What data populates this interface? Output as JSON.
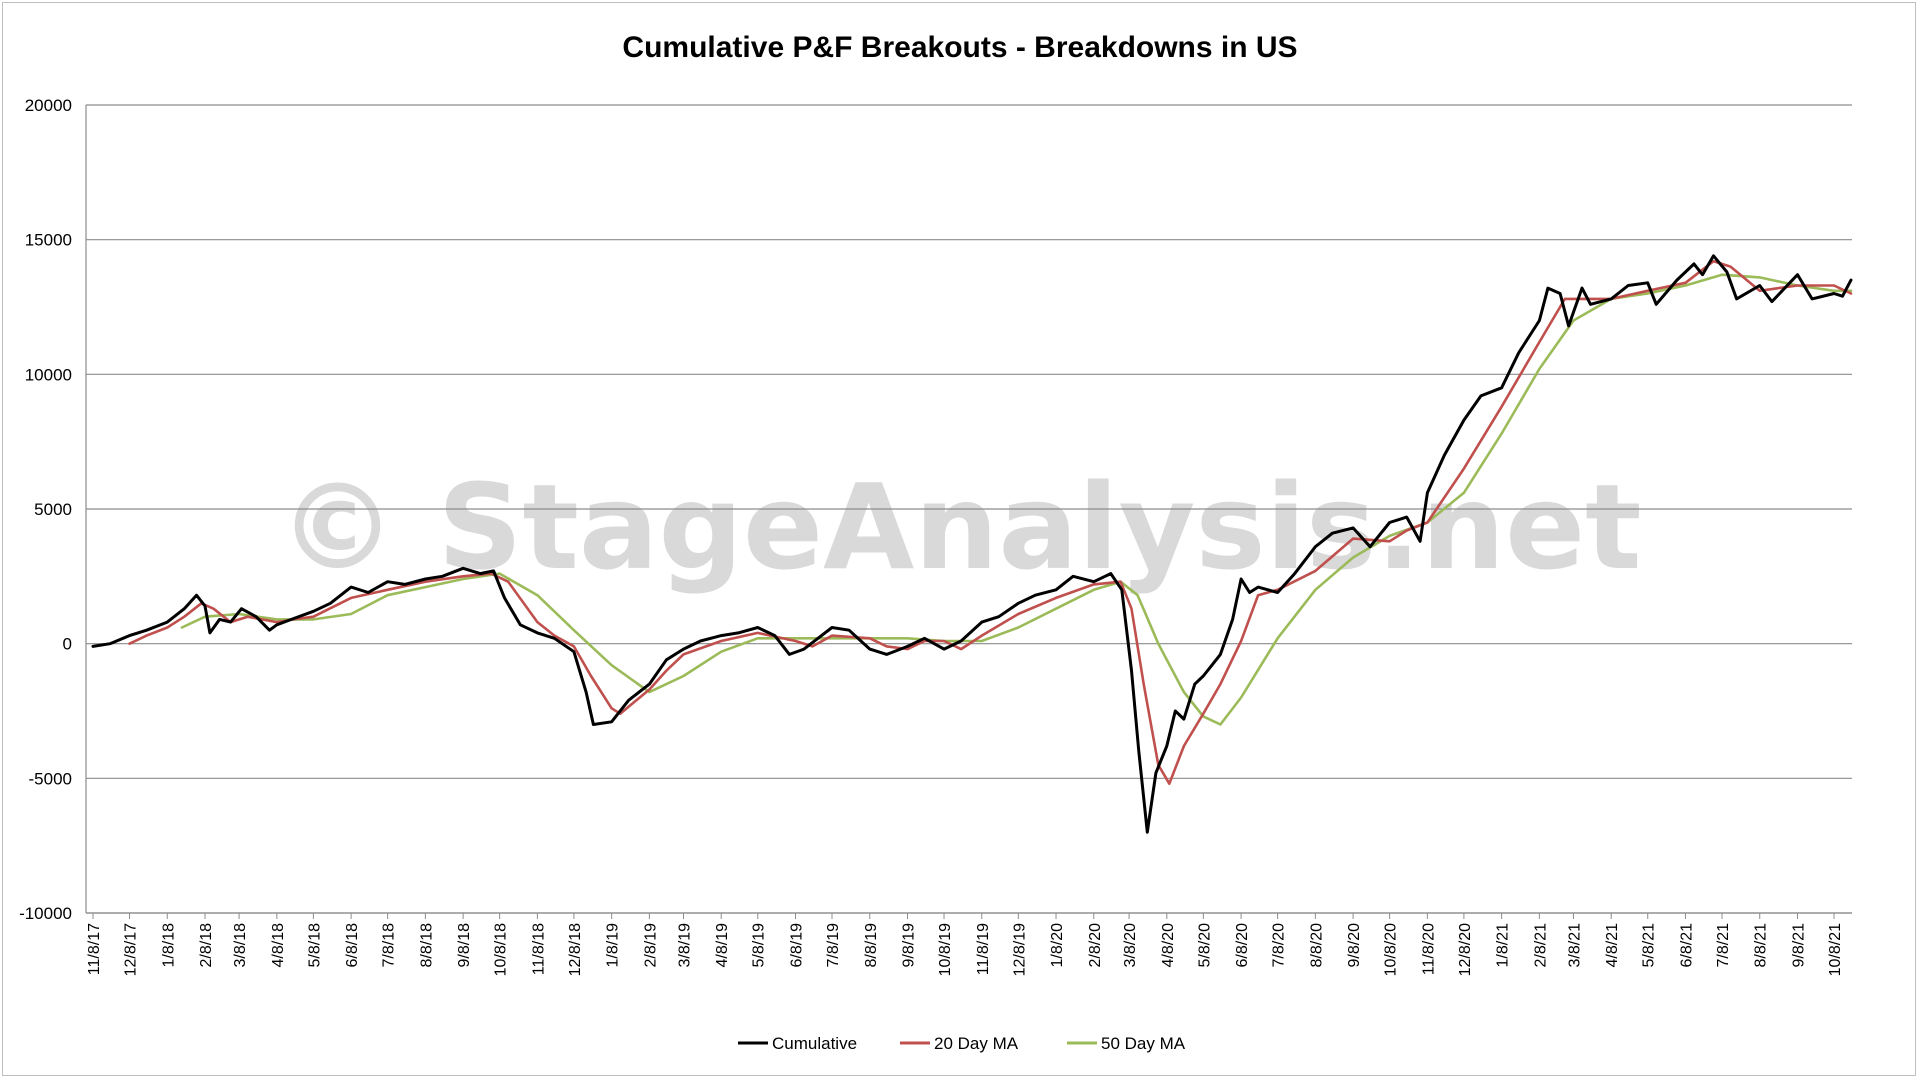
{
  "watermark": "© StageAnalysis.net",
  "chart_data": {
    "type": "line",
    "title": "Cumulative P&F Breakouts - Breakdowns in US",
    "xlabel": "",
    "ylabel": "",
    "ylim": [
      -10000,
      20000
    ],
    "yticks": [
      -10000,
      -5000,
      0,
      5000,
      10000,
      15000,
      20000
    ],
    "ytick_labels": [
      "-10000",
      "-5000",
      "0",
      "5000",
      "10000",
      "15000",
      "20000"
    ],
    "x_tick_labels": [
      "11/8/17",
      "12/8/17",
      "1/8/18",
      "2/8/18",
      "3/8/18",
      "4/8/18",
      "5/8/18",
      "6/8/18",
      "7/8/18",
      "8/8/18",
      "9/8/18",
      "10/8/18",
      "11/8/18",
      "12/8/18",
      "1/8/19",
      "2/8/19",
      "3/8/19",
      "4/8/19",
      "5/8/19",
      "6/8/19",
      "7/8/19",
      "8/8/19",
      "9/8/19",
      "10/8/19",
      "11/8/19",
      "12/8/19",
      "1/8/20",
      "2/8/20",
      "3/8/20",
      "4/8/20",
      "5/8/20",
      "6/8/20",
      "7/8/20",
      "8/8/20",
      "9/8/20",
      "10/8/20",
      "11/8/20",
      "12/8/20",
      "1/8/21",
      "2/8/21",
      "3/8/21",
      "4/8/21",
      "5/8/21",
      "6/8/21",
      "7/8/21",
      "8/8/21",
      "9/8/21",
      "10/8/21"
    ],
    "grid": true,
    "legend_position": "bottom",
    "series": [
      {
        "name": "Cumulative",
        "color": "#000000",
        "points": [
          [
            "11/8/17",
            -100
          ],
          [
            "11/22/17",
            0
          ],
          [
            "12/8/17",
            300
          ],
          [
            "12/22/17",
            500
          ],
          [
            "1/8/18",
            800
          ],
          [
            "1/22/18",
            1300
          ],
          [
            "2/1/18",
            1800
          ],
          [
            "2/8/18",
            1400
          ],
          [
            "2/12/18",
            400
          ],
          [
            "2/20/18",
            900
          ],
          [
            "3/1/18",
            800
          ],
          [
            "3/10/18",
            1300
          ],
          [
            "3/22/18",
            1000
          ],
          [
            "4/2/18",
            500
          ],
          [
            "4/8/18",
            700
          ],
          [
            "4/20/18",
            900
          ],
          [
            "5/8/18",
            1200
          ],
          [
            "5/22/18",
            1500
          ],
          [
            "6/8/18",
            2100
          ],
          [
            "6/22/18",
            1900
          ],
          [
            "7/8/18",
            2300
          ],
          [
            "7/22/18",
            2200
          ],
          [
            "8/8/18",
            2400
          ],
          [
            "8/22/18",
            2500
          ],
          [
            "9/8/18",
            2800
          ],
          [
            "9/22/18",
            2600
          ],
          [
            "10/3/18",
            2700
          ],
          [
            "10/12/18",
            1700
          ],
          [
            "10/25/18",
            700
          ],
          [
            "11/8/18",
            400
          ],
          [
            "11/22/18",
            200
          ],
          [
            "12/8/18",
            -300
          ],
          [
            "12/18/18",
            -1800
          ],
          [
            "12/24/18",
            -3000
          ],
          [
            "1/8/19",
            -2900
          ],
          [
            "1/22/19",
            -2100
          ],
          [
            "2/8/19",
            -1500
          ],
          [
            "2/22/19",
            -600
          ],
          [
            "3/8/19",
            -200
          ],
          [
            "3/22/19",
            100
          ],
          [
            "4/8/19",
            300
          ],
          [
            "4/22/19",
            400
          ],
          [
            "5/8/19",
            600
          ],
          [
            "5/22/19",
            300
          ],
          [
            "6/3/19",
            -400
          ],
          [
            "6/15/19",
            -200
          ],
          [
            "7/8/19",
            600
          ],
          [
            "7/22/19",
            500
          ],
          [
            "8/8/19",
            -200
          ],
          [
            "8/22/19",
            -400
          ],
          [
            "9/8/19",
            -100
          ],
          [
            "9/22/19",
            200
          ],
          [
            "10/8/19",
            -200
          ],
          [
            "10/22/19",
            100
          ],
          [
            "11/8/19",
            800
          ],
          [
            "11/22/19",
            1000
          ],
          [
            "12/8/19",
            1500
          ],
          [
            "12/22/19",
            1800
          ],
          [
            "1/8/20",
            2000
          ],
          [
            "1/22/20",
            2500
          ],
          [
            "2/8/20",
            2300
          ],
          [
            "2/22/20",
            2600
          ],
          [
            "3/2/20",
            2000
          ],
          [
            "3/10/20",
            -1000
          ],
          [
            "3/16/20",
            -4000
          ],
          [
            "3/23/20",
            -7000
          ],
          [
            "3/30/20",
            -4800
          ],
          [
            "4/8/20",
            -3800
          ],
          [
            "4/15/20",
            -2500
          ],
          [
            "4/22/20",
            -2800
          ],
          [
            "5/1/20",
            -1500
          ],
          [
            "5/8/20",
            -1200
          ],
          [
            "5/15/20",
            -800
          ],
          [
            "5/22/20",
            -400
          ],
          [
            "6/1/20",
            900
          ],
          [
            "6/8/20",
            2400
          ],
          [
            "6/15/20",
            1900
          ],
          [
            "6/22/20",
            2100
          ],
          [
            "7/8/20",
            1900
          ],
          [
            "7/22/20",
            2600
          ],
          [
            "8/8/20",
            3600
          ],
          [
            "8/22/20",
            4100
          ],
          [
            "9/8/20",
            4300
          ],
          [
            "9/22/20",
            3600
          ],
          [
            "10/8/20",
            4500
          ],
          [
            "10/22/20",
            4700
          ],
          [
            "11/2/20",
            3800
          ],
          [
            "11/8/20",
            5600
          ],
          [
            "11/22/20",
            7000
          ],
          [
            "12/8/20",
            8300
          ],
          [
            "12/22/20",
            9200
          ],
          [
            "1/8/21",
            9500
          ],
          [
            "1/22/21",
            10800
          ],
          [
            "2/8/21",
            12000
          ],
          [
            "2/15/21",
            13200
          ],
          [
            "2/25/21",
            13000
          ],
          [
            "3/4/21",
            11800
          ],
          [
            "3/15/21",
            13200
          ],
          [
            "3/22/21",
            12600
          ],
          [
            "4/8/21",
            12800
          ],
          [
            "4/22/21",
            13300
          ],
          [
            "5/8/21",
            13400
          ],
          [
            "5/15/21",
            12600
          ],
          [
            "6/1/21",
            13500
          ],
          [
            "6/15/21",
            14100
          ],
          [
            "6/22/21",
            13700
          ],
          [
            "7/1/21",
            14400
          ],
          [
            "7/12/21",
            13800
          ],
          [
            "7/20/21",
            12800
          ],
          [
            "8/8/21",
            13300
          ],
          [
            "8/18/21",
            12700
          ],
          [
            "9/8/21",
            13700
          ],
          [
            "9/20/21",
            12800
          ],
          [
            "10/8/21",
            13000
          ],
          [
            "10/15/21",
            12900
          ],
          [
            "10/22/21",
            13500
          ]
        ]
      },
      {
        "name": "20 Day MA",
        "color": "#c0504d",
        "points": [
          [
            "12/8/17",
            0
          ],
          [
            "12/22/17",
            300
          ],
          [
            "1/8/18",
            600
          ],
          [
            "1/22/18",
            1000
          ],
          [
            "2/5/18",
            1500
          ],
          [
            "2/15/18",
            1300
          ],
          [
            "3/1/18",
            800
          ],
          [
            "3/15/18",
            1000
          ],
          [
            "4/8/18",
            800
          ],
          [
            "4/22/18",
            900
          ],
          [
            "5/8/18",
            1000
          ],
          [
            "6/8/18",
            1700
          ],
          [
            "7/8/18",
            2000
          ],
          [
            "8/8/18",
            2300
          ],
          [
            "9/8/18",
            2500
          ],
          [
            "10/1/18",
            2600
          ],
          [
            "10/15/18",
            2300
          ],
          [
            "11/8/18",
            800
          ],
          [
            "11/22/18",
            300
          ],
          [
            "12/8/18",
            -100
          ],
          [
            "12/22/18",
            -1200
          ],
          [
            "1/8/19",
            -2400
          ],
          [
            "1/15/19",
            -2600
          ],
          [
            "2/8/19",
            -1700
          ],
          [
            "2/22/19",
            -1000
          ],
          [
            "3/8/19",
            -400
          ],
          [
            "4/8/19",
            100
          ],
          [
            "5/8/19",
            400
          ],
          [
            "6/8/19",
            100
          ],
          [
            "6/22/19",
            -100
          ],
          [
            "7/8/19",
            300
          ],
          [
            "8/8/19",
            200
          ],
          [
            "8/22/19",
            -100
          ],
          [
            "9/8/19",
            -200
          ],
          [
            "9/22/19",
            100
          ],
          [
            "10/8/19",
            100
          ],
          [
            "10/22/19",
            -200
          ],
          [
            "11/8/19",
            300
          ],
          [
            "12/8/19",
            1100
          ],
          [
            "1/8/20",
            1700
          ],
          [
            "2/8/20",
            2200
          ],
          [
            "3/1/20",
            2300
          ],
          [
            "3/10/20",
            1300
          ],
          [
            "3/20/20",
            -1500
          ],
          [
            "4/1/20",
            -4500
          ],
          [
            "4/10/20",
            -5200
          ],
          [
            "4/22/20",
            -3800
          ],
          [
            "5/8/20",
            -2600
          ],
          [
            "5/22/20",
            -1500
          ],
          [
            "6/8/20",
            100
          ],
          [
            "6/22/20",
            1800
          ],
          [
            "7/8/20",
            2000
          ],
          [
            "8/8/20",
            2700
          ],
          [
            "9/8/20",
            3900
          ],
          [
            "10/8/20",
            3800
          ],
          [
            "10/22/20",
            4200
          ],
          [
            "11/8/20",
            4500
          ],
          [
            "12/8/20",
            6500
          ],
          [
            "1/8/21",
            8800
          ],
          [
            "2/8/21",
            11200
          ],
          [
            "3/1/21",
            12800
          ],
          [
            "3/22/21",
            12800
          ],
          [
            "4/8/21",
            12800
          ],
          [
            "5/8/21",
            13100
          ],
          [
            "6/8/21",
            13400
          ],
          [
            "7/1/21",
            14200
          ],
          [
            "7/15/21",
            14000
          ],
          [
            "8/8/21",
            13100
          ],
          [
            "9/8/21",
            13300
          ],
          [
            "10/8/21",
            13300
          ],
          [
            "10/22/21",
            13000
          ]
        ]
      },
      {
        "name": "50 Day MA",
        "color": "#9bbb59",
        "points": [
          [
            "1/20/18",
            600
          ],
          [
            "2/8/18",
            1000
          ],
          [
            "3/8/18",
            1100
          ],
          [
            "4/8/18",
            900
          ],
          [
            "5/8/18",
            900
          ],
          [
            "6/8/18",
            1100
          ],
          [
            "7/8/18",
            1800
          ],
          [
            "8/8/18",
            2100
          ],
          [
            "9/8/18",
            2400
          ],
          [
            "10/8/18",
            2600
          ],
          [
            "11/8/18",
            1800
          ],
          [
            "12/8/18",
            500
          ],
          [
            "1/8/19",
            -800
          ],
          [
            "2/8/19",
            -1800
          ],
          [
            "3/8/19",
            -1200
          ],
          [
            "4/8/19",
            -300
          ],
          [
            "5/8/19",
            200
          ],
          [
            "6/8/19",
            200
          ],
          [
            "7/8/19",
            200
          ],
          [
            "8/8/19",
            200
          ],
          [
            "9/8/19",
            200
          ],
          [
            "10/8/19",
            100
          ],
          [
            "11/8/19",
            100
          ],
          [
            "12/8/19",
            600
          ],
          [
            "1/8/20",
            1300
          ],
          [
            "2/8/20",
            2000
          ],
          [
            "3/1/20",
            2300
          ],
          [
            "3/15/20",
            1800
          ],
          [
            "4/1/20",
            0
          ],
          [
            "4/22/20",
            -1800
          ],
          [
            "5/8/20",
            -2700
          ],
          [
            "5/22/20",
            -3000
          ],
          [
            "6/8/20",
            -2000
          ],
          [
            "7/8/20",
            200
          ],
          [
            "8/8/20",
            2000
          ],
          [
            "9/8/20",
            3200
          ],
          [
            "10/8/20",
            4000
          ],
          [
            "11/8/20",
            4500
          ],
          [
            "12/8/20",
            5600
          ],
          [
            "1/8/21",
            7800
          ],
          [
            "2/8/21",
            10200
          ],
          [
            "3/8/21",
            12000
          ],
          [
            "4/8/21",
            12800
          ],
          [
            "5/8/21",
            13000
          ],
          [
            "6/8/21",
            13300
          ],
          [
            "7/8/21",
            13700
          ],
          [
            "8/8/21",
            13600
          ],
          [
            "9/8/21",
            13300
          ],
          [
            "10/8/21",
            13100
          ],
          [
            "10/22/21",
            13100
          ]
        ]
      }
    ]
  }
}
